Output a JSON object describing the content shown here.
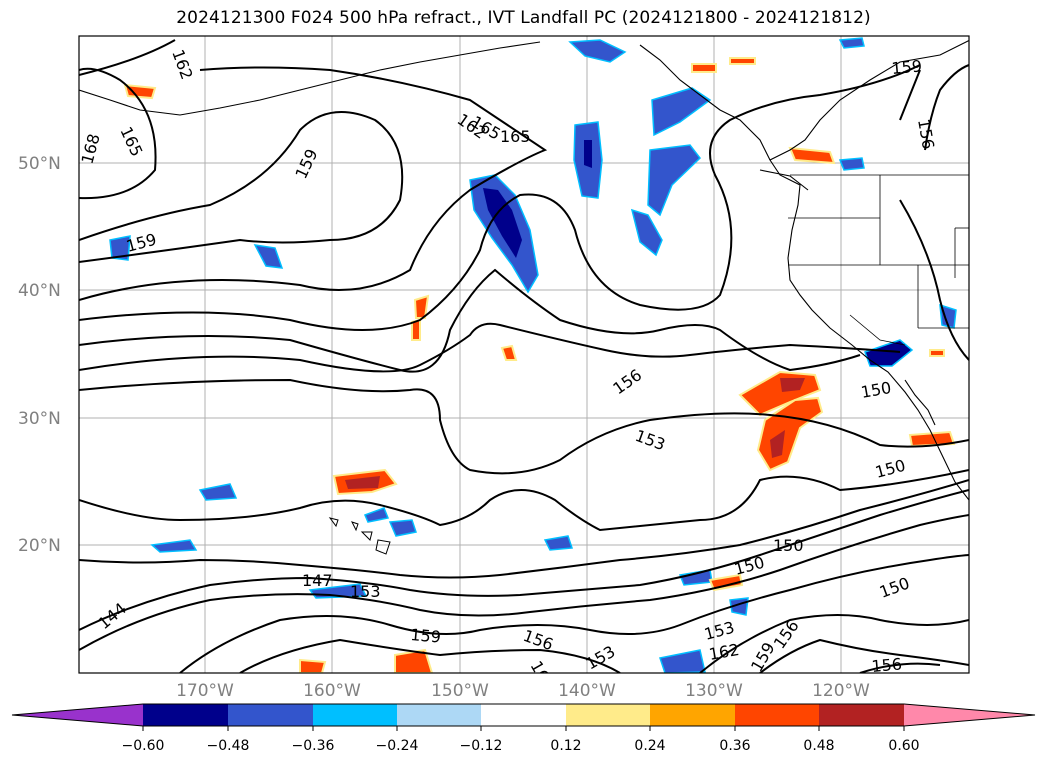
{
  "title": "2024121300 F024 500 hPa refract., IVT Landfall PC (2024121800 - 2024121812)",
  "lat_labels": [
    "50°N",
    "40°N",
    "30°N",
    "20°N"
  ],
  "lon_labels": [
    "170°W",
    "160°W",
    "150°W",
    "140°W",
    "130°W",
    "120°W"
  ],
  "contour_labels": [
    "162",
    "165",
    "168",
    "159",
    "165",
    "162",
    "165",
    "159",
    "159",
    "156",
    "156",
    "153",
    "150",
    "150",
    "150",
    "147",
    "153",
    "144",
    "159",
    "156",
    "162",
    "153",
    "153",
    "162",
    "159",
    "156",
    "156",
    "150"
  ],
  "colorbar": {
    "ticks": [
      "−0.60",
      "−0.48",
      "−0.36",
      "−0.24",
      "−0.12",
      "0.12",
      "0.24",
      "0.36",
      "0.48",
      "0.60"
    ],
    "colors": [
      "#9932cc",
      "#00008b",
      "#3355cc",
      "#00bfff",
      "#add8f5",
      "#ffffff",
      "#ffeb8a",
      "#ffa500",
      "#ff4500",
      "#b22222",
      "#ff88aa"
    ]
  }
}
